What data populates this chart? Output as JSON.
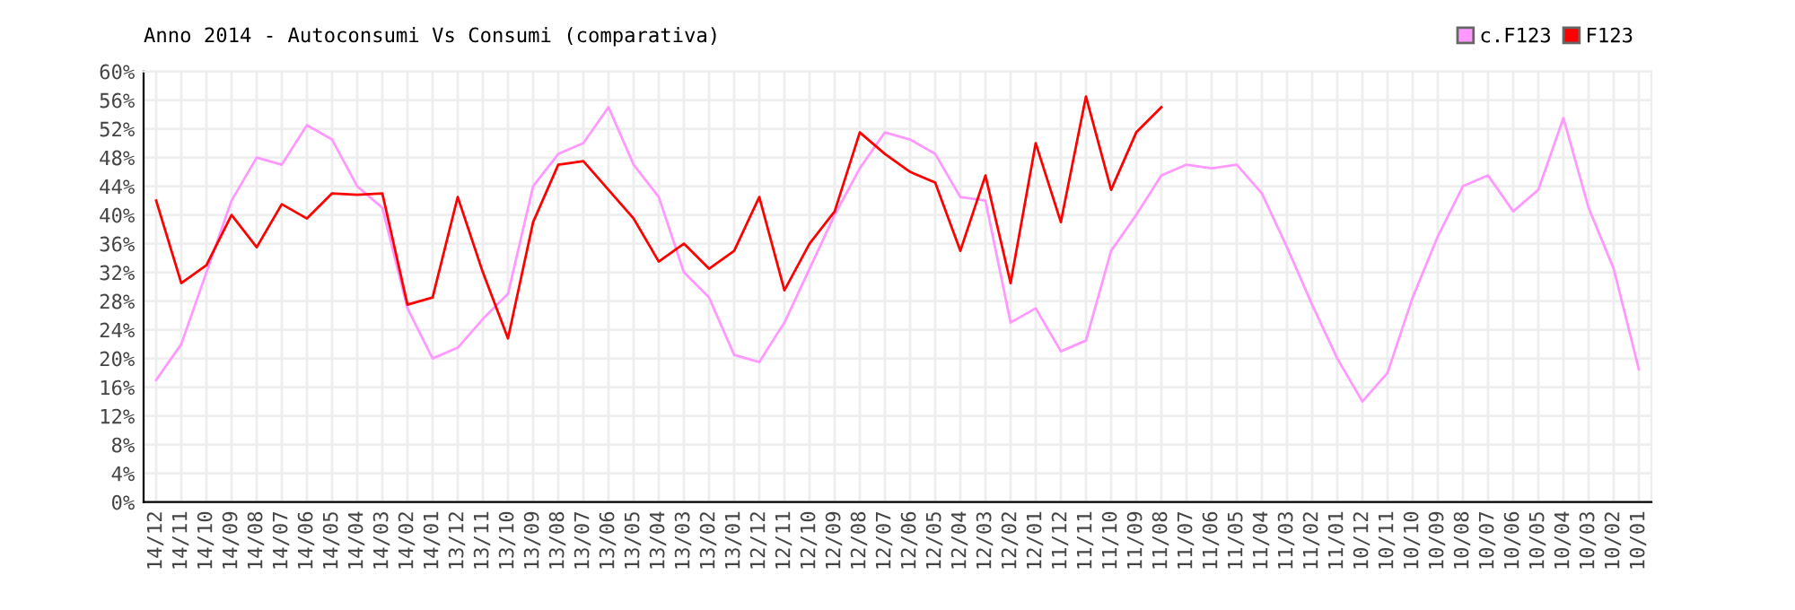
{
  "chart_data": {
    "type": "line",
    "title": "Anno 2014 - Autoconsumi Vs Consumi (comparativa)",
    "categories": [
      "14/12",
      "14/11",
      "14/10",
      "14/09",
      "14/08",
      "14/07",
      "14/06",
      "14/05",
      "14/04",
      "14/03",
      "14/02",
      "14/01",
      "13/12",
      "13/11",
      "13/10",
      "13/09",
      "13/08",
      "13/07",
      "13/06",
      "13/05",
      "13/04",
      "13/03",
      "13/02",
      "13/01",
      "12/12",
      "12/11",
      "12/10",
      "12/09",
      "12/08",
      "12/07",
      "12/06",
      "12/05",
      "12/04",
      "12/03",
      "12/02",
      "12/01",
      "11/12",
      "11/11",
      "11/10",
      "11/09",
      "11/08",
      "11/07",
      "11/06",
      "11/05",
      "11/04",
      "11/03",
      "11/02",
      "11/01",
      "10/12",
      "10/11",
      "10/10",
      "10/09",
      "10/08",
      "10/07",
      "10/06",
      "10/05",
      "10/04",
      "10/03",
      "10/02",
      "10/01"
    ],
    "series": [
      {
        "name": "c.F123",
        "color": "#ff99ff",
        "values": [
          17,
          22,
          32,
          42,
          48,
          47,
          52.5,
          50.5,
          44,
          41,
          27,
          20,
          21.5,
          25.5,
          29,
          44,
          48.5,
          50,
          55,
          47,
          42.5,
          32,
          28.5,
          20.5,
          19.5,
          25,
          32.5,
          40,
          46.5,
          51.5,
          50.5,
          48.5,
          42.5,
          42,
          25,
          27,
          21,
          22.5,
          35,
          40,
          45.5,
          47,
          46.5,
          47,
          43,
          35.5,
          27.5,
          20,
          14,
          18,
          28.5,
          37,
          44,
          45.5,
          40.5,
          43.5,
          53.5,
          41,
          32.5,
          18.5
        ]
      },
      {
        "name": "F123",
        "color": "#ff0000",
        "values": [
          42,
          30.5,
          33,
          40,
          35.5,
          41.5,
          39.5,
          43,
          42.8,
          43,
          27.5,
          28.5,
          42.5,
          32,
          22.8,
          39,
          47,
          47.5,
          43.5,
          39.5,
          33.5,
          36,
          32.5,
          35,
          42.5,
          29.5,
          36,
          40.5,
          51.5,
          48.5,
          46,
          44.5,
          35,
          45.5,
          30.5,
          50,
          39,
          56.5,
          43.5,
          51.5,
          55,
          null,
          null,
          null,
          null,
          null,
          null,
          null,
          null,
          null,
          null,
          null,
          null,
          null,
          null,
          null,
          null,
          null,
          null,
          null
        ]
      }
    ],
    "ylim": [
      0,
      60
    ],
    "yticks": [
      {
        "value": 0,
        "label": "0%"
      },
      {
        "value": 4,
        "label": "4%"
      },
      {
        "value": 8,
        "label": "8%"
      },
      {
        "value": 12,
        "label": "12%"
      },
      {
        "value": 16,
        "label": "16%"
      },
      {
        "value": 20,
        "label": "20%"
      },
      {
        "value": 24,
        "label": "24%"
      },
      {
        "value": 28,
        "label": "28%"
      },
      {
        "value": 32,
        "label": "32%"
      },
      {
        "value": 36,
        "label": "36%"
      },
      {
        "value": 40,
        "label": "40%"
      },
      {
        "value": 44,
        "label": "44%"
      },
      {
        "value": 48,
        "label": "48%"
      },
      {
        "value": 52,
        "label": "52%"
      },
      {
        "value": 56,
        "label": "56%"
      },
      {
        "value": 60,
        "label": "60%"
      }
    ],
    "grid": true,
    "legend": "top right",
    "marker": "none",
    "line_style": "solid"
  }
}
